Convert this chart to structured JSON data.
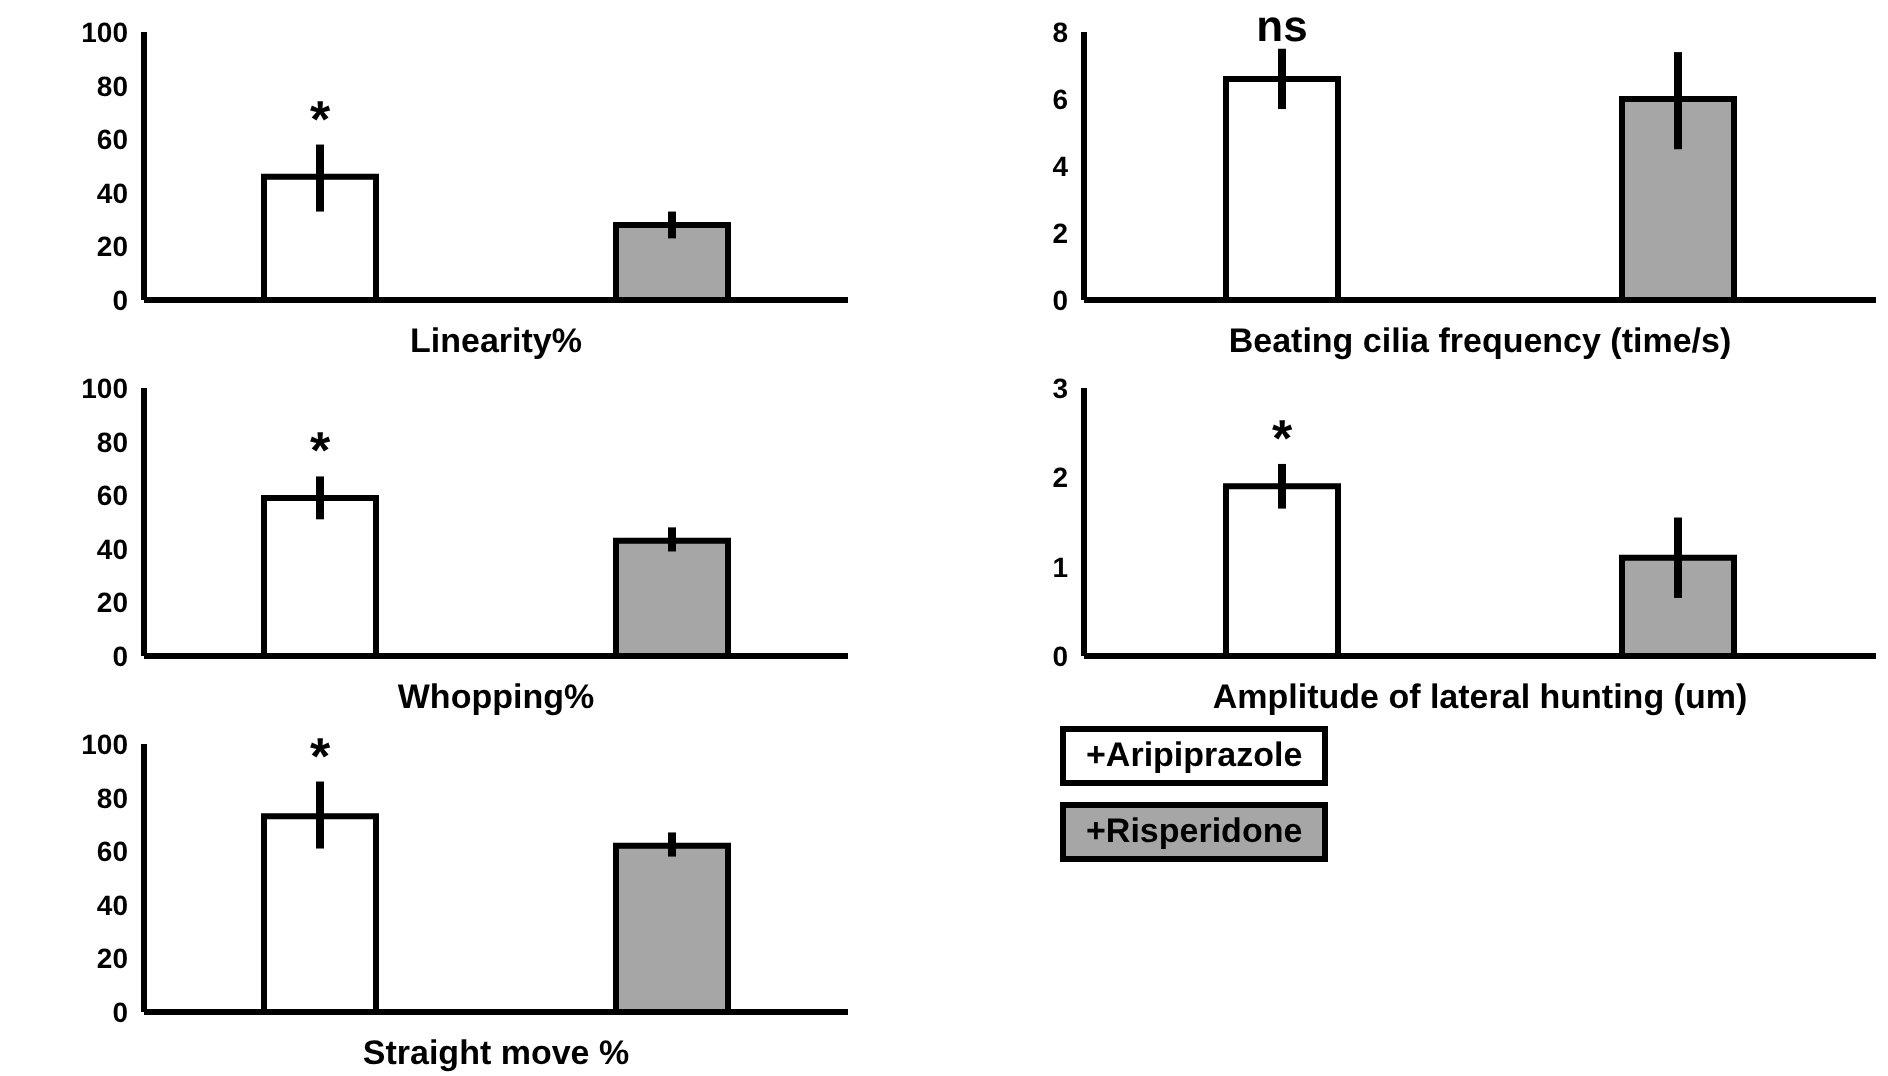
{
  "chart_data": [
    {
      "type": "bar",
      "xlabel": "Linearity%",
      "categories": [
        null,
        null
      ],
      "ylim": [
        0,
        100
      ],
      "yticks": [
        0,
        20,
        40,
        60,
        80,
        100
      ],
      "annotations": [
        "*"
      ],
      "series": [
        {
          "color": "#ffffff",
          "values": [
            46,
            null
          ],
          "errors": [
            [
              33,
              58
            ],
            null
          ]
        },
        {
          "color": "#a6a6a6",
          "values": [
            null,
            28
          ],
          "errors": [
            null,
            [
              23,
              33
            ]
          ]
        }
      ]
    },
    {
      "type": "bar",
      "xlabel": "Whopping%",
      "categories": [
        null,
        null
      ],
      "ylim": [
        0,
        100
      ],
      "yticks": [
        0,
        20,
        40,
        60,
        80,
        100
      ],
      "annotations": [
        "*"
      ],
      "series": [
        {
          "color": "#ffffff",
          "values": [
            59,
            null
          ],
          "errors": [
            [
              51,
              67
            ],
            null
          ]
        },
        {
          "color": "#a6a6a6",
          "values": [
            null,
            43
          ],
          "errors": [
            null,
            [
              39,
              48
            ]
          ]
        }
      ]
    },
    {
      "type": "bar",
      "xlabel": "Straight move %",
      "categories": [
        null,
        null
      ],
      "ylim": [
        0,
        100
      ],
      "yticks": [
        0,
        20,
        40,
        60,
        80,
        100
      ],
      "annotations": [
        "*"
      ],
      "series": [
        {
          "color": "#ffffff",
          "values": [
            73,
            null
          ],
          "errors": [
            [
              61,
              86
            ],
            null
          ]
        },
        {
          "color": "#a6a6a6",
          "values": [
            null,
            62
          ],
          "errors": [
            null,
            [
              58,
              67
            ]
          ]
        }
      ]
    },
    {
      "type": "bar",
      "xlabel": "Beating cilia frequency (time/s)",
      "categories": [
        null,
        null
      ],
      "ylim": [
        0,
        8
      ],
      "yticks": [
        0,
        2,
        4,
        6,
        8
      ],
      "annotations": [
        "ns"
      ],
      "series": [
        {
          "color": "#ffffff",
          "values": [
            6.6,
            null
          ],
          "errors": [
            [
              5.7,
              7.5
            ],
            null
          ]
        },
        {
          "color": "#a6a6a6",
          "values": [
            null,
            6.0
          ],
          "errors": [
            null,
            [
              4.5,
              7.4
            ]
          ]
        }
      ]
    },
    {
      "type": "bar",
      "xlabel": "Amplitude of lateral hunting (um)",
      "categories": [
        null,
        null
      ],
      "ylim": [
        0,
        3
      ],
      "yticks": [
        0,
        1,
        2,
        3
      ],
      "annotations": [
        "*"
      ],
      "legend": "bottom",
      "series": [
        {
          "name": "+Aripiprazole",
          "color": "#ffffff",
          "values": [
            1.9,
            null
          ],
          "errors": [
            [
              1.65,
              2.15
            ],
            null
          ]
        },
        {
          "name": "+Risperidone",
          "color": "#a6a6a6",
          "values": [
            null,
            1.1
          ],
          "errors": [
            null,
            [
              0.65,
              1.55
            ]
          ]
        }
      ]
    }
  ]
}
